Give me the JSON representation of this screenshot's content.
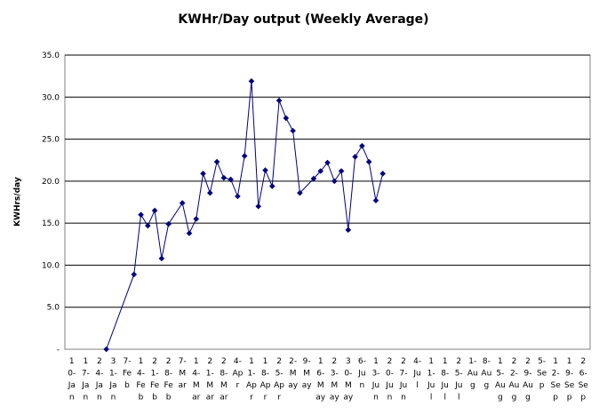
{
  "chart_data": {
    "type": "line",
    "title": "KWHr/Day output (Weekly Average)",
    "ylabel": "KWHrs/day",
    "xlabel": "",
    "ylim": [
      0,
      35
    ],
    "y_ticks": [
      "-",
      "5.0",
      "10.0",
      "15.0",
      "20.0",
      "25.0",
      "30.0",
      "35.0"
    ],
    "gridlines": "horizontal",
    "legend": "none",
    "series_color": "#000080",
    "x_tick_labels": [
      [
        "1",
        "0-",
        "Ja",
        "n"
      ],
      [
        "1",
        "7-",
        "Ja",
        "n"
      ],
      [
        "2",
        "4-",
        "Ja",
        "n"
      ],
      [
        "3",
        "1-",
        "Ja",
        "n"
      ],
      [
        "7-",
        "Fe",
        "b"
      ],
      [
        "1",
        "4-",
        "Fe",
        "b"
      ],
      [
        "2",
        "1-",
        "Fe",
        "b"
      ],
      [
        "2",
        "8-",
        "Fe",
        "b"
      ],
      [
        "7-",
        "M",
        "ar"
      ],
      [
        "1",
        "4-",
        "M",
        "ar"
      ],
      [
        "2",
        "1-",
        "M",
        "ar"
      ],
      [
        "2",
        "8-",
        "M",
        "ar"
      ],
      [
        "4-",
        "Ap",
        "r"
      ],
      [
        "1",
        "1-",
        "Ap",
        "r"
      ],
      [
        "1",
        "8-",
        "Ap",
        "r"
      ],
      [
        "2",
        "5-",
        "Ap",
        "r"
      ],
      [
        "2-",
        "M",
        "ay"
      ],
      [
        "9-",
        "M",
        "ay"
      ],
      [
        "1",
        "6-",
        "M",
        "ay"
      ],
      [
        "2",
        "3-",
        "M",
        "ay"
      ],
      [
        "3",
        "0-",
        "M",
        "ay"
      ],
      [
        "6-",
        "Ju",
        "n"
      ],
      [
        "1",
        "3-",
        "Ju",
        "n"
      ],
      [
        "2",
        "0-",
        "Ju",
        "n"
      ],
      [
        "2",
        "7-",
        "Ju",
        "n"
      ],
      [
        "4-",
        "Ju",
        "l"
      ],
      [
        "1",
        "1-",
        "Ju",
        "l"
      ],
      [
        "1",
        "8-",
        "Ju",
        "l"
      ],
      [
        "2",
        "5-",
        "Ju",
        "l"
      ],
      [
        "1-",
        "Au",
        "g"
      ],
      [
        "8-",
        "Au",
        "g"
      ],
      [
        "1",
        "5-",
        "Au",
        "g"
      ],
      [
        "2",
        "2-",
        "Au",
        "g"
      ],
      [
        "2",
        "9-",
        "Au",
        "g"
      ],
      [
        "5-",
        "Se",
        "p"
      ],
      [
        "1",
        "2-",
        "Se",
        "p"
      ],
      [
        "1",
        "9-",
        "Se",
        "p"
      ],
      [
        "2",
        "6-",
        "Se",
        "p"
      ]
    ],
    "categories": [
      "10-Jan",
      "17-Jan",
      "24-Jan",
      "31-Jan",
      "7-Feb",
      "14-Feb",
      "21-Feb",
      "28-Feb",
      "7-Mar",
      "14-Mar",
      "21-Mar",
      "28-Mar",
      "4-Apr",
      "11-Apr",
      "18-Apr",
      "25-Apr",
      "2-May",
      "9-May",
      "16-May",
      "23-May",
      "30-May",
      "6-Jun",
      "13-Jun",
      "20-Jun",
      "27-Jun",
      "4-Jul",
      "11-Jul",
      "18-Jul",
      "25-Jul",
      "1-Aug",
      "8-Aug",
      "15-Aug",
      "22-Aug",
      "29-Aug",
      "5-Sep",
      "12-Sep",
      "19-Sep",
      "26-Sep"
    ],
    "series": [
      {
        "points": [
          [
            2.5,
            0.0
          ],
          [
            4.5,
            8.9
          ],
          [
            5.0,
            16.0
          ],
          [
            5.5,
            14.7
          ],
          [
            6.0,
            16.5
          ],
          [
            6.5,
            10.8
          ],
          [
            7.0,
            14.9
          ],
          [
            8.0,
            17.4
          ],
          [
            8.5,
            13.8
          ],
          [
            9.0,
            15.5
          ],
          [
            9.5,
            20.9
          ],
          [
            10.0,
            18.6
          ],
          [
            10.5,
            22.3
          ],
          [
            11.0,
            20.4
          ],
          [
            11.5,
            20.2
          ],
          [
            12.0,
            18.2
          ],
          [
            12.5,
            23.0
          ],
          [
            13.0,
            31.9
          ],
          [
            13.5,
            17.0
          ],
          [
            14.0,
            21.3
          ],
          [
            14.5,
            19.4
          ],
          [
            15.0,
            29.6
          ],
          [
            15.5,
            27.5
          ],
          [
            16.0,
            26.0
          ],
          [
            16.5,
            18.6
          ],
          [
            17.5,
            20.3
          ],
          [
            18.0,
            21.2
          ],
          [
            18.5,
            22.2
          ],
          [
            19.0,
            20.0
          ],
          [
            19.5,
            21.2
          ],
          [
            20.0,
            14.2
          ],
          [
            20.5,
            22.9
          ],
          [
            21.0,
            24.2
          ],
          [
            21.5,
            22.3
          ],
          [
            22.0,
            17.7
          ],
          [
            22.5,
            20.9
          ]
        ]
      }
    ]
  }
}
